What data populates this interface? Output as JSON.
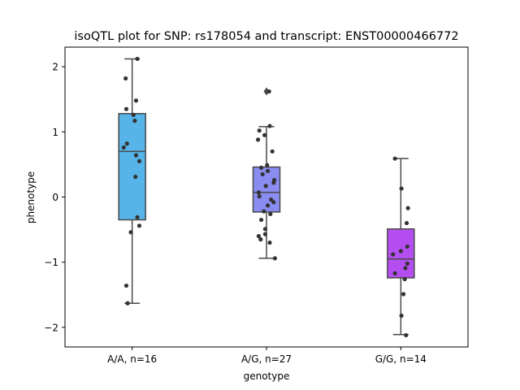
{
  "chart_data": {
    "type": "box",
    "title": "isoQTL plot for SNP: rs178054 and transcript: ENST00000466772",
    "xlabel": "genotype",
    "ylabel": "phenotype",
    "ylim": [
      -2.3,
      2.3
    ],
    "yticks": [
      -2,
      -1,
      0,
      1,
      2
    ],
    "ytick_labels": [
      "−2",
      "−1",
      "0",
      "1",
      "2"
    ],
    "grid": false,
    "categories": [
      "A/A, n=16",
      "A/G, n=27",
      "G/G, n=14"
    ],
    "colors": [
      "#56b4e9",
      "#8b8cf2",
      "#b54ef0"
    ],
    "boxes": [
      {
        "q1": -0.35,
        "median": 0.7,
        "q3": 1.28,
        "whisker_low": -1.63,
        "whisker_high": 2.12,
        "outliers": []
      },
      {
        "q1": -0.23,
        "median": 0.07,
        "q3": 0.46,
        "whisker_low": -0.94,
        "whisker_high": 1.08,
        "outliers": [
          1.62
        ]
      },
      {
        "q1": -1.24,
        "median": -0.95,
        "q3": -0.49,
        "whisker_low": -2.11,
        "whisker_high": 0.59,
        "outliers": []
      }
    ],
    "points": [
      [
        {
          "dx": 0.08,
          "y": 2.12
        },
        {
          "dx": -0.1,
          "y": 1.82
        },
        {
          "dx": 0.06,
          "y": 1.48
        },
        {
          "dx": -0.09,
          "y": 1.35
        },
        {
          "dx": 0.02,
          "y": 1.26
        },
        {
          "dx": 0.04,
          "y": 1.17
        },
        {
          "dx": -0.08,
          "y": 0.82
        },
        {
          "dx": -0.13,
          "y": 0.76
        },
        {
          "dx": 0.06,
          "y": 0.64
        },
        {
          "dx": 0.11,
          "y": 0.55
        },
        {
          "dx": 0.05,
          "y": 0.31
        },
        {
          "dx": 0.08,
          "y": -0.31
        },
        {
          "dx": 0.11,
          "y": -0.44
        },
        {
          "dx": -0.02,
          "y": -0.54
        },
        {
          "dx": -0.09,
          "y": -1.36
        },
        {
          "dx": -0.07,
          "y": -1.63
        }
      ],
      [
        {
          "dx": 0.04,
          "y": 1.62
        },
        {
          "dx": 0.05,
          "y": 1.09
        },
        {
          "dx": -0.11,
          "y": 1.02
        },
        {
          "dx": -0.03,
          "y": 0.95
        },
        {
          "dx": -0.13,
          "y": 0.88
        },
        {
          "dx": 0.09,
          "y": 0.7
        },
        {
          "dx": 0.01,
          "y": 0.49
        },
        {
          "dx": -0.08,
          "y": 0.45
        },
        {
          "dx": 0.02,
          "y": 0.4
        },
        {
          "dx": -0.06,
          "y": 0.35
        },
        {
          "dx": 0.12,
          "y": 0.26
        },
        {
          "dx": 0.11,
          "y": 0.22
        },
        {
          "dx": -0.01,
          "y": 0.17
        },
        {
          "dx": -0.12,
          "y": 0.07
        },
        {
          "dx": -0.11,
          "y": 0.01
        },
        {
          "dx": 0.07,
          "y": -0.04
        },
        {
          "dx": 0.11,
          "y": -0.08
        },
        {
          "dx": 0.02,
          "y": -0.13
        },
        {
          "dx": -0.04,
          "y": -0.22
        },
        {
          "dx": 0.06,
          "y": -0.26
        },
        {
          "dx": -0.08,
          "y": -0.35
        },
        {
          "dx": -0.02,
          "y": -0.49
        },
        {
          "dx": -0.12,
          "y": -0.6
        },
        {
          "dx": -0.09,
          "y": -0.65
        },
        {
          "dx": 0.05,
          "y": -0.7
        },
        {
          "dx": 0.13,
          "y": -0.94
        },
        {
          "dx": -0.02,
          "y": -0.57
        }
      ],
      [
        {
          "dx": -0.09,
          "y": 0.59
        },
        {
          "dx": 0.01,
          "y": 0.13
        },
        {
          "dx": 0.11,
          "y": -0.17
        },
        {
          "dx": 0.09,
          "y": -0.4
        },
        {
          "dx": 0.1,
          "y": -0.76
        },
        {
          "dx": 0.0,
          "y": -0.83
        },
        {
          "dx": -0.12,
          "y": -0.88
        },
        {
          "dx": 0.1,
          "y": -1.02
        },
        {
          "dx": 0.07,
          "y": -1.09
        },
        {
          "dx": -0.09,
          "y": -1.17
        },
        {
          "dx": 0.06,
          "y": -1.26
        },
        {
          "dx": 0.04,
          "y": -1.49
        },
        {
          "dx": 0.01,
          "y": -1.82
        },
        {
          "dx": 0.08,
          "y": -2.12
        }
      ]
    ]
  }
}
